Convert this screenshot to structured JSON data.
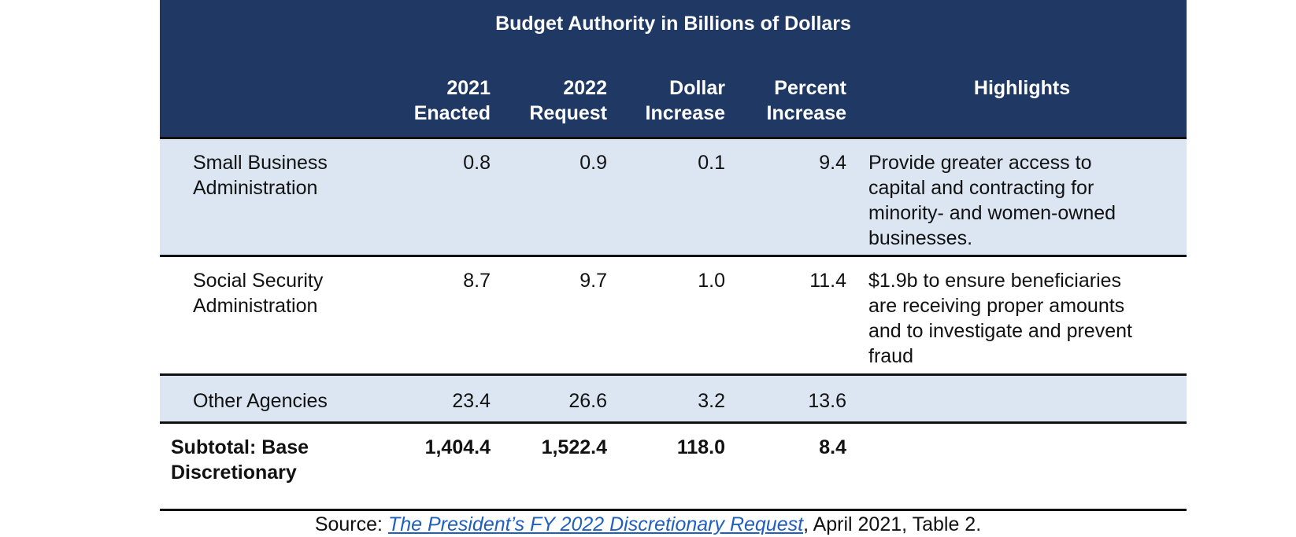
{
  "table": {
    "title": "Budget Authority in Billions of Dollars",
    "headers": {
      "enacted_2021": [
        "2021",
        "Enacted"
      ],
      "request_2022": [
        "2022",
        "Request"
      ],
      "dollar_increase": [
        "Dollar",
        "Increase"
      ],
      "percent_increase": [
        "Percent",
        "Increase"
      ],
      "highlights": "Highlights"
    },
    "rows": [
      {
        "agency": [
          "Small Business",
          "Administration"
        ],
        "enacted_2021": "0.8",
        "request_2022": "0.9",
        "dollar_increase": "0.1",
        "percent_increase": "9.4",
        "highlights": [
          "Provide greater access to",
          "capital and contracting for",
          "minority- and women-owned",
          "businesses."
        ]
      },
      {
        "agency": [
          "Social Security",
          "Administration"
        ],
        "enacted_2021": "8.7",
        "request_2022": "9.7",
        "dollar_increase": "1.0",
        "percent_increase": "11.4",
        "highlights": [
          "$1.9b to ensure beneficiaries",
          "are receiving proper amounts",
          "and to investigate and prevent",
          "fraud"
        ]
      },
      {
        "agency": [
          "Other Agencies"
        ],
        "enacted_2021": "23.4",
        "request_2022": "26.6",
        "dollar_increase": "3.2",
        "percent_increase": "13.6",
        "highlights": []
      }
    ],
    "total": {
      "label": [
        "Subtotal: Base",
        "Discretionary"
      ],
      "enacted_2021": "1,404.4",
      "request_2022": "1,522.4",
      "dollar_increase": "118.0",
      "percent_increase": "8.4"
    }
  },
  "source": {
    "prefix": "Source: ",
    "link_text": "The President’s FY 2022 Discretionary Request",
    "suffix": ", April 2021, Table 2."
  },
  "colors": {
    "header_bg": "#1f3864",
    "shaded_row": "#dce6f2",
    "link": "#1f5fbf"
  }
}
